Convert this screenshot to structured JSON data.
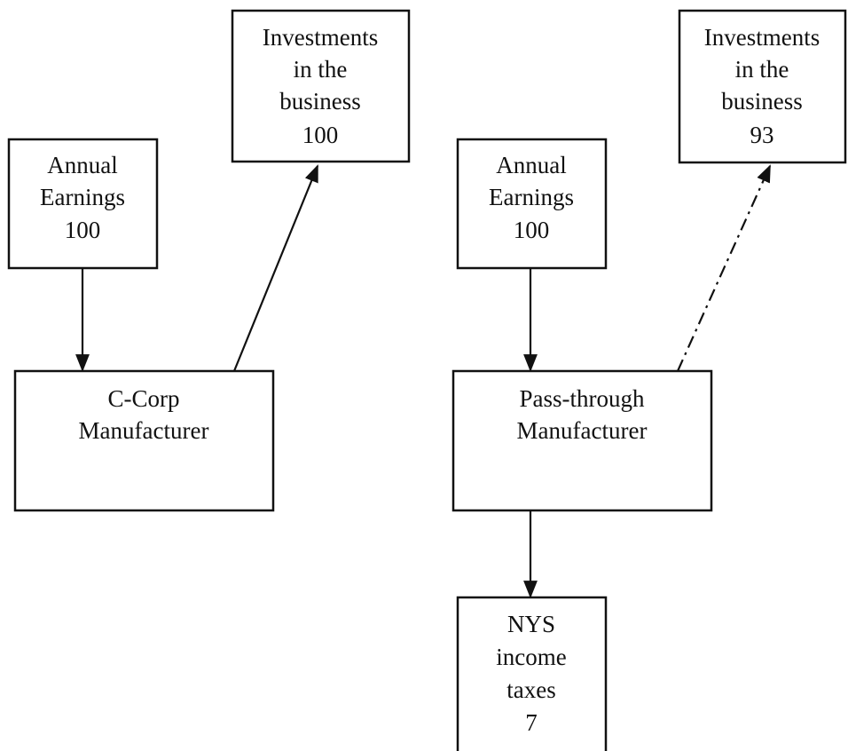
{
  "nodes": [
    {
      "lines": [
        "Annual",
        "Earnings",
        "100"
      ]
    },
    {
      "lines": [
        "Investments",
        "in the",
        "business",
        "100"
      ]
    },
    {
      "lines": [
        "C-Corp",
        "Manufacturer"
      ]
    },
    {
      "lines": [
        "Annual",
        "Earnings",
        "100"
      ]
    },
    {
      "lines": [
        "Investments",
        "in the",
        "business",
        "93"
      ]
    },
    {
      "lines": [
        "Pass-through",
        "Manufacturer"
      ]
    },
    {
      "lines": [
        "NYS",
        "income",
        "taxes",
        "7"
      ]
    }
  ]
}
